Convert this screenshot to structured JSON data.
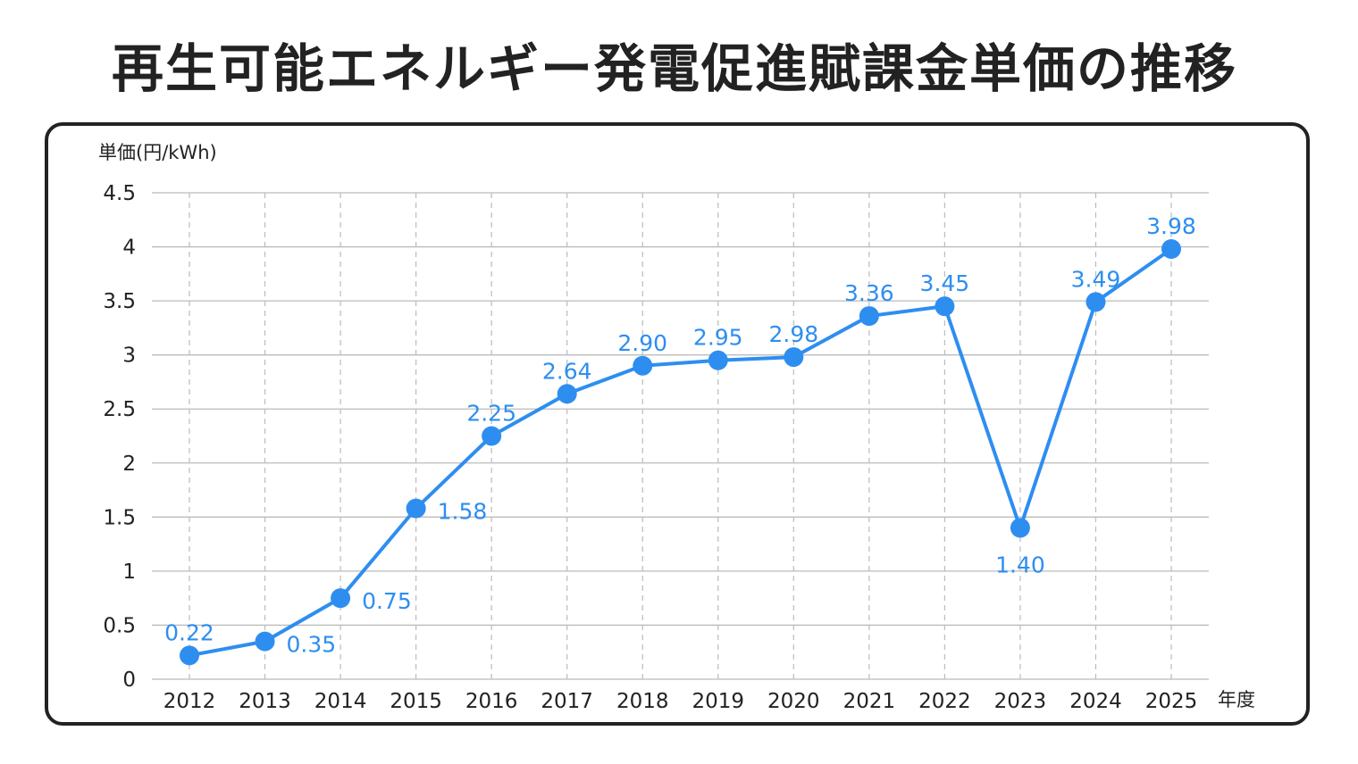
{
  "chart_data": {
    "type": "line",
    "title": "再生可能エネルギー発電促進賦課金単価の推移",
    "ylabel": "単価(円/kWh)",
    "xlabel": "年度",
    "ylim": [
      0,
      4.5
    ],
    "yticks": [
      "0",
      "0.5",
      "1",
      "1.5",
      "2",
      "2.5",
      "3",
      "3.5",
      "4",
      "4.5"
    ],
    "grid": true,
    "categories": [
      "2012",
      "2013",
      "2014",
      "2015",
      "2016",
      "2017",
      "2018",
      "2019",
      "2020",
      "2021",
      "2022",
      "2023",
      "2024",
      "2025"
    ],
    "series": [
      {
        "values": [
          0.22,
          0.35,
          0.75,
          1.58,
          2.25,
          2.64,
          2.9,
          2.95,
          2.98,
          3.36,
          3.45,
          1.4,
          3.49,
          3.98
        ],
        "labels": [
          "0.22",
          "0.35",
          "0.75",
          "1.58",
          "2.25",
          "2.64",
          "2.90",
          "2.95",
          "2.98",
          "3.36",
          "3.45",
          "1.40",
          "3.49",
          "3.98"
        ],
        "label_positions": [
          "above",
          "right",
          "right",
          "right",
          "above",
          "above",
          "above",
          "above",
          "above",
          "above",
          "above",
          "below",
          "above",
          "above"
        ],
        "color": "#2e8ef0"
      }
    ]
  }
}
